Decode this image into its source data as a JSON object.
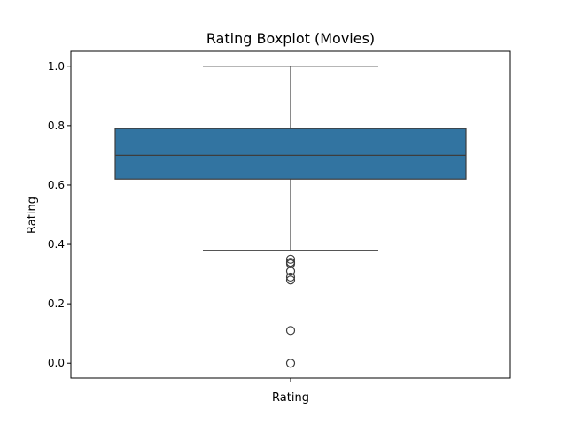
{
  "chart_data": {
    "type": "boxplot",
    "title": "Rating Boxplot (Movies)",
    "xlabel": "Rating",
    "ylabel": "Rating",
    "categories": [
      ""
    ],
    "ylim": [
      -0.05,
      1.05
    ],
    "yticks": [
      0.0,
      0.2,
      0.4,
      0.6,
      0.8,
      1.0
    ],
    "ytick_labels": [
      "0.0",
      "0.2",
      "0.4",
      "0.6",
      "0.8",
      "1.0"
    ],
    "grid": false,
    "box_color": "#3274a1",
    "line_color": "#3d3d3d",
    "series": [
      {
        "q1": 0.62,
        "median": 0.7,
        "q3": 0.79,
        "whisker_low": 0.38,
        "whisker_high": 1.0,
        "outliers": [
          0.35,
          0.34,
          0.335,
          0.31,
          0.29,
          0.28,
          0.11,
          0.0
        ]
      }
    ]
  }
}
